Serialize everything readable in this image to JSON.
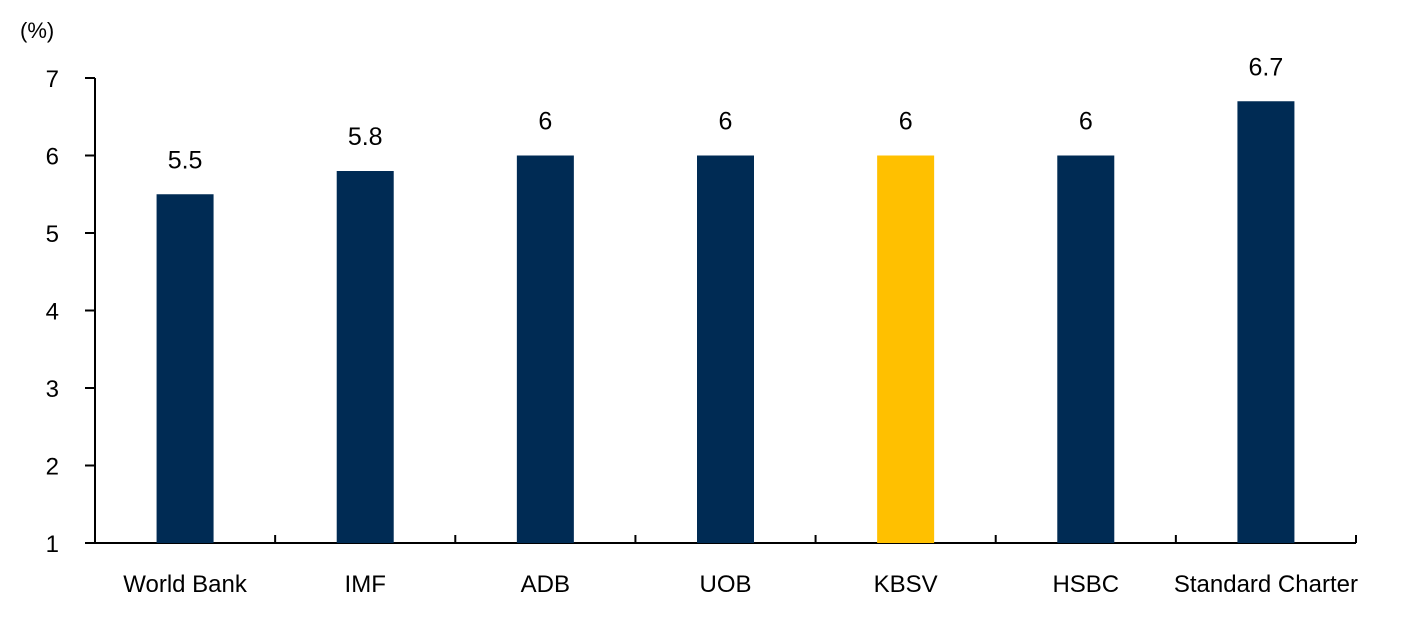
{
  "chart_data": {
    "type": "bar",
    "unit_label": "(%)",
    "categories": [
      "World Bank",
      "IMF",
      "ADB",
      "UOB",
      "KBSV",
      "HSBC",
      "Standard Charter"
    ],
    "values": [
      5.5,
      5.8,
      6,
      6,
      6,
      6,
      6.7
    ],
    "data_labels": [
      "5.5",
      "5.8",
      "6",
      "6",
      "6",
      "6",
      "6.7"
    ],
    "y_ticks": [
      1,
      2,
      3,
      4,
      5,
      6,
      7
    ],
    "ylim": [
      1,
      7
    ],
    "grid": false,
    "legend": "none",
    "colors": {
      "default_bar": "#002B54",
      "highlight_bar": "#FFC000",
      "highlight_category": "KBSV"
    }
  }
}
